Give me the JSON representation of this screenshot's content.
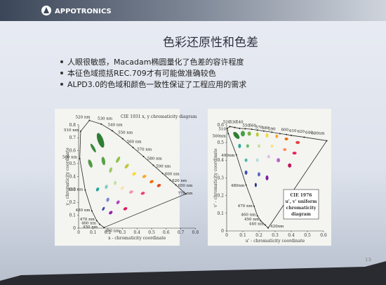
{
  "header": {
    "logo": "APPOTRONICS"
  },
  "title": "色彩还原性和色差",
  "bullets": [
    "人眼很敏感，Macadam椭圆量化了色差的容许程度",
    "本征色域揽括REC.709才有可能做准确较色",
    "ALPD3.0的色域和颜色一致性保证了工程应用的需求"
  ],
  "left_diagram": {
    "title": "CIE 1931 x, y chromaticity diagram",
    "x_label": "x - chromaticity coordinate",
    "y_label": "y - chromaticity coordinate",
    "x_ticks": [
      "0",
      "0.1",
      "0.2",
      "0.3",
      "0.4",
      "0.5",
      "0.6",
      "0.7",
      "0.8"
    ],
    "y_ticks": [
      "0",
      "0.1",
      "0.2",
      "0.3",
      "0.4",
      "0.5",
      "0.6",
      "0.7",
      "0.8"
    ],
    "wavelengths": [
      "520 nm",
      "530 nm",
      "510 nm",
      "540 nm",
      "550 nm",
      "560 nm",
      "500 nm",
      "570 nm",
      "580 nm",
      "590 nm",
      "600 nm",
      "620 nm",
      "650 nm",
      "770 nm",
      "490 nm",
      "480 nm",
      "470 nm",
      "460 nm",
      "450 nm",
      "380 nm"
    ]
  },
  "right_diagram": {
    "x_label": "u' - chromaticity coordinate",
    "y_label": "v' - chromaticity coordinate",
    "x_ticks": [
      "0",
      "0.1",
      "0.2",
      "0.3",
      "0.4",
      "0.5",
      "0.6"
    ],
    "y_ticks": [
      "0",
      "0.1",
      "0.2",
      "0.3",
      "0.4",
      "0.5",
      "0.6"
    ],
    "wavelengths": [
      "520",
      "530",
      "540",
      "550",
      "560",
      "570",
      "580",
      "590",
      "600",
      "610",
      "620",
      "640",
      "680nm",
      "510",
      "500nm",
      "490nm",
      "480nm",
      "470 nm",
      "460 nm",
      "450 nm",
      "440 nm",
      "420nm"
    ],
    "caption": [
      "CIE 1976",
      "u', v' uniform",
      "chromaticity",
      "diagram"
    ]
  },
  "page_number": "13"
}
